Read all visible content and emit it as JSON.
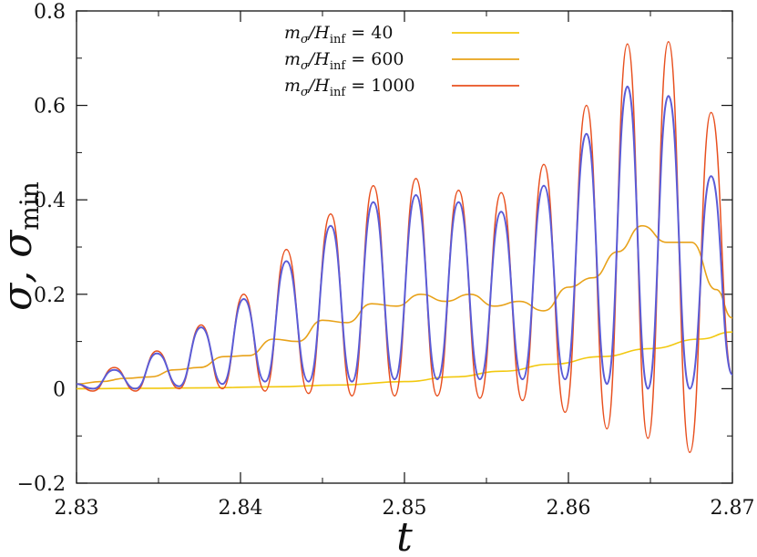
{
  "chart_data": {
    "type": "line",
    "title": "",
    "xlabel": "t",
    "ylabel": "σ,  σ_min",
    "ylabel_main": "σ,",
    "ylabel_sym": "σ",
    "ylabel_sub": "min",
    "xlim": [
      2.83,
      2.87
    ],
    "ylim": [
      -0.2,
      0.8
    ],
    "x_ticks": [
      2.83,
      2.84,
      2.85,
      2.86,
      2.87
    ],
    "x_tick_labels": [
      "2.83",
      "2.84",
      "2.85",
      "2.86",
      "2.87"
    ],
    "y_ticks": [
      -0.2,
      0,
      0.2,
      0.4,
      0.6,
      0.8
    ],
    "y_tick_labels": [
      "−0.2",
      "0",
      "0.2",
      "0.4",
      "0.6",
      "0.8"
    ],
    "legend_position": "top-center",
    "legend": [
      {
        "label": "m_σ/H_inf = 40",
        "sym": "m",
        "sub1": "σ",
        "mid": "/H",
        "sub2": "inf",
        "value": "= 40",
        "color": "#f2c80f"
      },
      {
        "label": "m_σ/H_inf = 600",
        "sym": "m",
        "sub1": "σ",
        "mid": "/H",
        "sub2": "inf",
        "value": "= 600",
        "color": "#e8a21a"
      },
      {
        "label": "m_σ/H_inf = 1000",
        "sym": "m",
        "sub1": "σ",
        "mid": "/H",
        "sub2": "inf",
        "value": "= 1000",
        "color": "#e8501f"
      }
    ],
    "series": [
      {
        "name": "m_σ/H_inf = 40",
        "color": "#f2c80f",
        "x": [
          2.83,
          2.834,
          2.838,
          2.842,
          2.846,
          2.85,
          2.853,
          2.856,
          2.859,
          2.862,
          2.865,
          2.868,
          2.87
        ],
        "y": [
          0.0,
          0.001,
          0.002,
          0.004,
          0.008,
          0.015,
          0.025,
          0.037,
          0.052,
          0.068,
          0.085,
          0.105,
          0.12
        ]
      },
      {
        "name": "m_σ/H_inf = 600",
        "color": "#e8a21a",
        "x": [
          2.83,
          2.8315,
          2.833,
          2.8345,
          2.836,
          2.8375,
          2.839,
          2.8405,
          2.842,
          2.8435,
          2.845,
          2.8465,
          2.848,
          2.8495,
          2.851,
          2.8525,
          2.854,
          2.8555,
          2.857,
          2.8585,
          2.86,
          2.8615,
          2.863,
          2.8645,
          2.866,
          2.8675,
          2.869,
          2.87
        ],
        "y": [
          0.01,
          0.015,
          0.022,
          0.025,
          0.04,
          0.045,
          0.068,
          0.07,
          0.105,
          0.1,
          0.145,
          0.14,
          0.18,
          0.175,
          0.2,
          0.185,
          0.2,
          0.175,
          0.185,
          0.165,
          0.215,
          0.235,
          0.29,
          0.345,
          0.31,
          0.31,
          0.21,
          0.15
        ]
      },
      {
        "name": "σ_min",
        "color": "#5b5bd6",
        "peaks_x": [
          2.8323,
          2.8349,
          2.8376,
          2.8402,
          2.8428,
          2.8455,
          2.8481,
          2.8507,
          2.8533,
          2.8559,
          2.8585,
          2.8611,
          2.8636,
          2.8661,
          2.8687
        ],
        "peaks_y": [
          0.04,
          0.075,
          0.13,
          0.19,
          0.27,
          0.345,
          0.395,
          0.41,
          0.395,
          0.375,
          0.43,
          0.54,
          0.64,
          0.62,
          0.45
        ],
        "troughs_y": [
          0.0,
          0.0,
          0.005,
          0.01,
          0.015,
          0.015,
          0.015,
          0.02,
          0.02,
          0.02,
          0.02,
          0.02,
          0.01,
          0.0,
          0.0
        ]
      },
      {
        "name": "m_σ/H_inf = 1000",
        "color": "#e8501f",
        "peaks_x": [
          2.8323,
          2.8349,
          2.8376,
          2.8402,
          2.8428,
          2.8455,
          2.8481,
          2.8507,
          2.8533,
          2.8559,
          2.8585,
          2.8611,
          2.8636,
          2.8661,
          2.8687
        ],
        "peaks_y": [
          0.045,
          0.08,
          0.135,
          0.2,
          0.295,
          0.37,
          0.43,
          0.445,
          0.42,
          0.415,
          0.475,
          0.6,
          0.73,
          0.735,
          0.585
        ],
        "troughs_y": [
          -0.005,
          -0.005,
          0.0,
          0.0,
          -0.005,
          -0.01,
          -0.015,
          -0.015,
          -0.015,
          -0.02,
          -0.025,
          -0.05,
          -0.085,
          -0.105,
          -0.135
        ]
      }
    ]
  }
}
